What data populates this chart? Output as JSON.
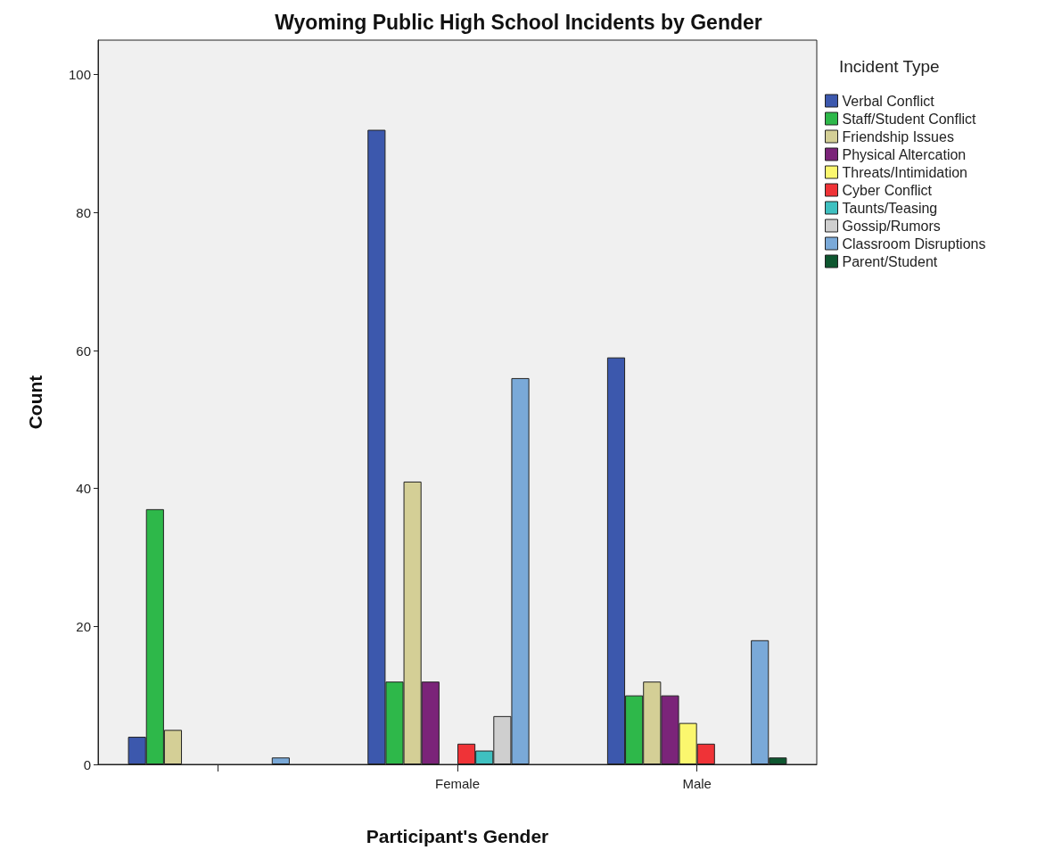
{
  "chart_data": {
    "type": "bar",
    "title": "Wyoming Public High School Incidents by Gender",
    "xlabel": "Participant's Gender",
    "ylabel": "Count",
    "legend_title": "Incident Type",
    "categories": [
      null,
      "Female",
      "Male"
    ],
    "series": [
      {
        "name": "Verbal Conflict",
        "color": "#3c58ad",
        "values": [
          4,
          92,
          59
        ]
      },
      {
        "name": "Staff/Student Conflict",
        "color": "#2eb84a",
        "values": [
          37,
          12,
          10
        ]
      },
      {
        "name": "Friendship Issues",
        "color": "#d4cf96",
        "values": [
          5,
          41,
          12
        ]
      },
      {
        "name": "Physical Altercation",
        "color": "#7b2479",
        "values": [
          null,
          12,
          10
        ]
      },
      {
        "name": "Threats/Intimidation",
        "color": "#fbf76e",
        "values": [
          null,
          null,
          6
        ]
      },
      {
        "name": "Cyber Conflict",
        "color": "#ef3337",
        "values": [
          null,
          3,
          3
        ]
      },
      {
        "name": "Taunts/Teasing",
        "color": "#3fc0c0",
        "values": [
          null,
          2,
          null
        ]
      },
      {
        "name": "Gossip/Rumors",
        "color": "#cfcfcf",
        "values": [
          null,
          7,
          null
        ]
      },
      {
        "name": "Classroom Disruptions",
        "color": "#7aa9d8",
        "values": [
          1,
          56,
          18
        ]
      },
      {
        "name": "Parent/Student",
        "color": "#0e5730",
        "values": [
          null,
          null,
          1
        ]
      }
    ],
    "ylim": [
      0,
      105
    ],
    "yticks": [
      0,
      20,
      40,
      60,
      80,
      100
    ],
    "grid": false,
    "legend": "right"
  }
}
